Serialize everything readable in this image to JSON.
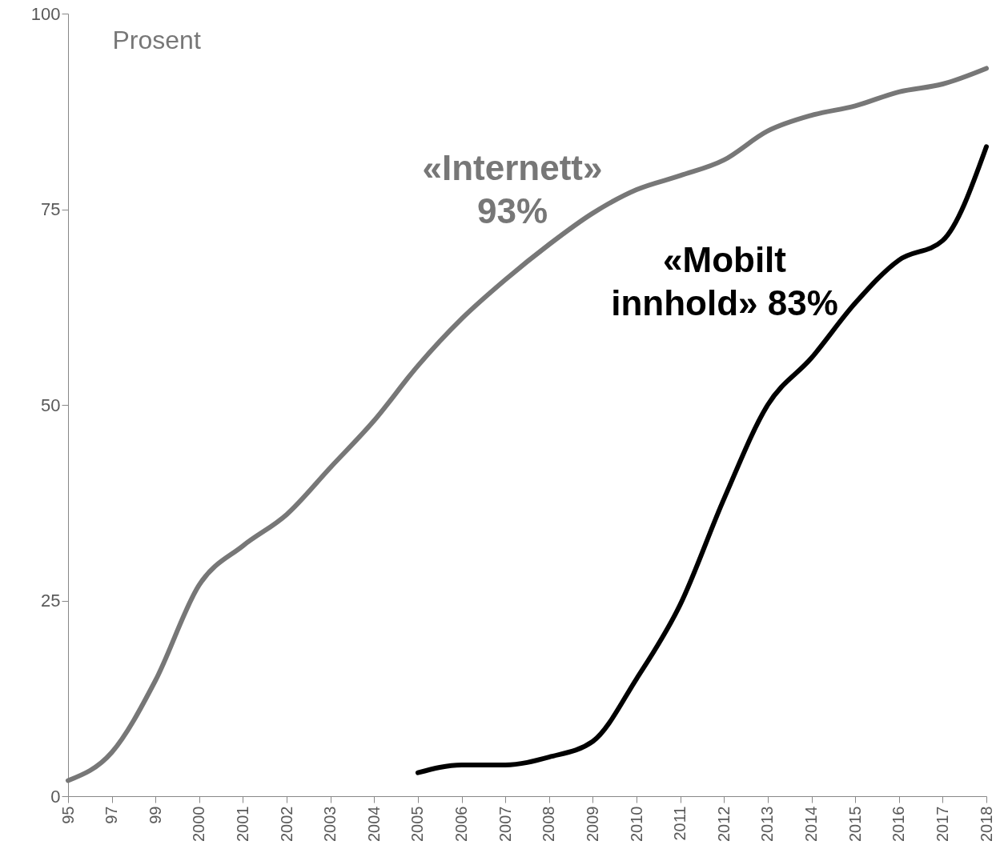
{
  "chart_data": {
    "type": "line",
    "ylabel": "Prosent",
    "categories": [
      "95",
      "97",
      "99",
      "2000",
      "2001",
      "2002",
      "2003",
      "2004",
      "2005",
      "2006",
      "2007",
      "2008",
      "2009",
      "2010",
      "2011",
      "2012",
      "2013",
      "2014",
      "2015",
      "2016",
      "2017",
      "2018"
    ],
    "series": [
      {
        "color": "#777777",
        "values": [
          2,
          5.6,
          14.8,
          27,
          32,
          36,
          42,
          48,
          55,
          61,
          66,
          70.5,
          74.5,
          77.5,
          79.3,
          81.3,
          85,
          87,
          88.2,
          90,
          91,
          93
        ]
      },
      {
        "color": "#000000",
        "values": [
          null,
          null,
          null,
          null,
          null,
          null,
          null,
          null,
          3,
          4,
          4,
          5,
          7,
          15,
          24.5,
          38,
          50,
          56,
          63,
          68.5,
          71,
          83
        ]
      }
    ],
    "annotations": [
      "«Internett»\n93%",
      "«Mobilt\ninnhold» 83%"
    ],
    "ylim": [
      0,
      100
    ],
    "yticks": [
      0,
      25,
      50,
      75,
      100
    ],
    "marker": "none",
    "line_style": "solid"
  }
}
